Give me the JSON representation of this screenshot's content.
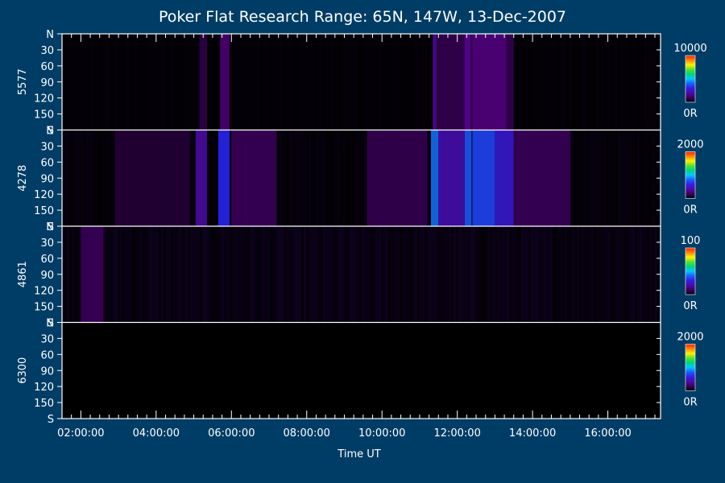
{
  "chart_data": {
    "type": "heatmap",
    "title": "Poker Flat Research Range: 65N, 147W, 13-Dec-2007",
    "xlabel": "Time UT",
    "x_tick_labels": [
      "02:00:00",
      "04:00:00",
      "06:00:00",
      "08:00:00",
      "10:00:00",
      "12:00:00",
      "14:00:00",
      "16:00:00"
    ],
    "x_tick_hours": [
      2,
      4,
      6,
      8,
      10,
      12,
      14,
      16
    ],
    "x_range_hours": [
      1.5,
      17.4
    ],
    "y_tick_labels": [
      "N",
      "30",
      "60",
      "90",
      "120",
      "150",
      "S"
    ],
    "y_tick_values": [
      0,
      30,
      60,
      90,
      120,
      150,
      180
    ],
    "ylim": [
      0,
      180
    ],
    "panels": [
      {
        "name": "5577",
        "colorbar": {
          "max_label": "10000",
          "min_label": "0R",
          "max": 10000,
          "min": 0
        },
        "noise_level": 0.05,
        "bands": [
          {
            "start_hour": 5.15,
            "end_hour": 5.35,
            "intensity": 0.08
          },
          {
            "start_hour": 5.7,
            "end_hour": 5.95,
            "intensity": 0.13
          },
          {
            "start_hour": 11.35,
            "end_hour": 11.45,
            "intensity": 0.18
          },
          {
            "start_hour": 11.45,
            "end_hour": 13.5,
            "intensity": 0.09
          },
          {
            "start_hour": 12.2,
            "end_hour": 12.35,
            "intensity": 0.16
          },
          {
            "start_hour": 12.4,
            "end_hour": 13.3,
            "intensity": 0.13
          }
        ]
      },
      {
        "name": "4278",
        "colorbar": {
          "max_label": "2000",
          "min_label": "0R",
          "max": 2000,
          "min": 0
        },
        "noise_level": 0.08,
        "bands": [
          {
            "start_hour": 2.9,
            "end_hour": 4.9,
            "intensity": 0.06
          },
          {
            "start_hour": 5.05,
            "end_hour": 5.35,
            "intensity": 0.2
          },
          {
            "start_hour": 5.65,
            "end_hour": 5.95,
            "intensity": 0.34
          },
          {
            "start_hour": 6.0,
            "end_hour": 7.2,
            "intensity": 0.1
          },
          {
            "start_hour": 9.6,
            "end_hour": 11.2,
            "intensity": 0.09
          },
          {
            "start_hour": 11.3,
            "end_hour": 11.5,
            "intensity": 0.42
          },
          {
            "start_hour": 11.5,
            "end_hour": 12.2,
            "intensity": 0.22
          },
          {
            "start_hour": 12.2,
            "end_hour": 12.38,
            "intensity": 0.4
          },
          {
            "start_hour": 12.4,
            "end_hour": 13.0,
            "intensity": 0.38
          },
          {
            "start_hour": 13.0,
            "end_hour": 13.5,
            "intensity": 0.28
          },
          {
            "start_hour": 13.5,
            "end_hour": 15.0,
            "intensity": 0.1
          }
        ]
      },
      {
        "name": "4861",
        "colorbar": {
          "max_label": "100",
          "min_label": "0R",
          "max": 100,
          "min": 0
        },
        "noise_level": 0.14,
        "bands": [
          {
            "start_hour": 2.0,
            "end_hour": 2.6,
            "intensity": 0.1
          }
        ]
      },
      {
        "name": "6300",
        "colorbar": {
          "max_label": "2000",
          "min_label": "0R",
          "max": 2000,
          "min": 0
        },
        "noise_level": 0.0,
        "bands": []
      }
    ]
  }
}
